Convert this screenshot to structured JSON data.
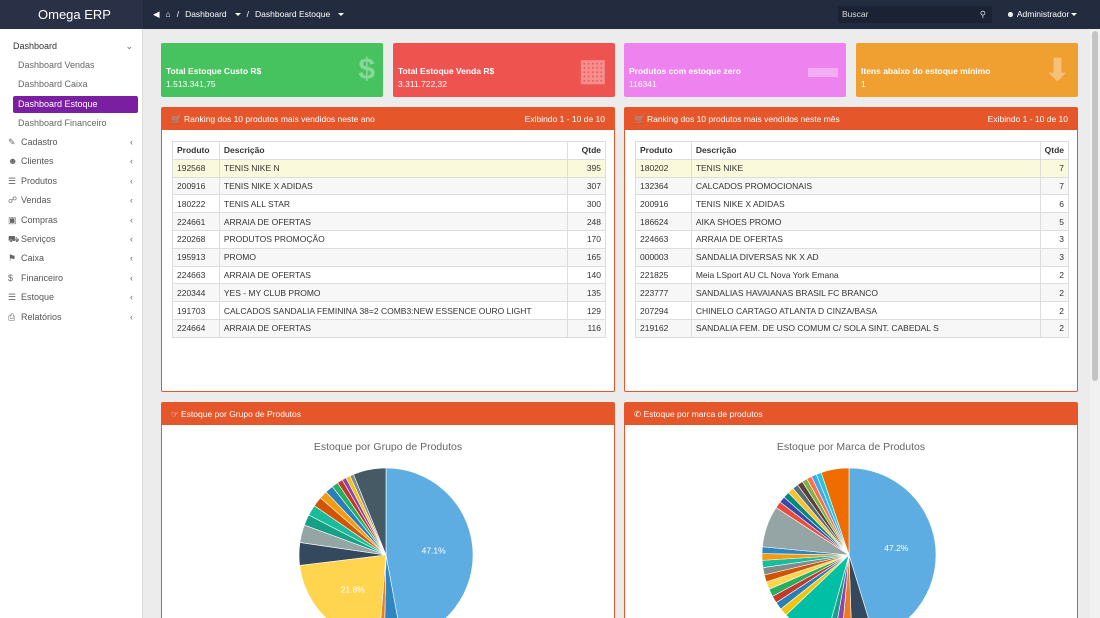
{
  "brand": "Omega ERP",
  "breadcrumb": {
    "items": [
      "Dashboard",
      "Dashboard Estoque"
    ]
  },
  "search": {
    "placeholder": "Buscar"
  },
  "user": {
    "name": "Administrador"
  },
  "sidebar": {
    "dashboard": "Dashboard",
    "subs": [
      "Dashboard Vendas",
      "Dashboard Caixa",
      "Dashboard Estoque",
      "Dashboard Financeiro"
    ],
    "menu": [
      "Cadastro",
      "Clientes",
      "Produtos",
      "Vendas",
      "Compras",
      "Serviços",
      "Caixa",
      "Financeiro",
      "Estoque",
      "Relatórios"
    ]
  },
  "stats": [
    {
      "title": "Total Estoque Custo R$",
      "value": "1.513.341,75",
      "color": "#46c35f",
      "icon": "dollar-icon"
    },
    {
      "title": "Total Estoque Venda R$",
      "value": "3.311.722,32",
      "color": "#ef5350",
      "icon": "building-icon"
    },
    {
      "title": "Produtos com estoque zero",
      "value": "116341",
      "color": "#ee82ee",
      "icon": "minus-icon"
    },
    {
      "title": "Itens abaixo do estoque mínimo",
      "value": "1",
      "color": "#f0a030",
      "icon": "download-icon"
    }
  ],
  "ranking_year": {
    "title": "Ranking dos 10 produtos mais vendidos neste ano",
    "showing": "Exibindo 1 - 10 de 10",
    "headers": [
      "Produto",
      "Descrição",
      "Qtde"
    ],
    "rows": [
      [
        "192568",
        "TENIS NIKE N",
        "395"
      ],
      [
        "200916",
        "TENIS NIKE X ADIDAS",
        "307"
      ],
      [
        "180222",
        "TENIS ALL STAR",
        "300"
      ],
      [
        "224661",
        "ARRAIA DE OFERTAS",
        "248"
      ],
      [
        "220268",
        "PRODUTOS PROMOÇÃO",
        "170"
      ],
      [
        "195913",
        "PROMO",
        "165"
      ],
      [
        "224663",
        "ARRAIA DE OFERTAS",
        "140"
      ],
      [
        "220344",
        "YES - MY CLUB PROMO",
        "135"
      ],
      [
        "191703",
        "CALCADOS SANDALIA FEMININA 38=2 COMB3:NEW ESSENCE OURO LIGHT",
        "129"
      ],
      [
        "224664",
        "ARRAIA DE OFERTAS",
        "116"
      ]
    ]
  },
  "ranking_month": {
    "title": "Ranking dos 10 produtos mais vendidos neste mês",
    "showing": "Exibindo 1 - 10 de 10",
    "headers": [
      "Produto",
      "Descrição",
      "Qtde"
    ],
    "rows": [
      [
        "180202",
        "TENIS NIKE",
        "7"
      ],
      [
        "132364",
        "CALCADOS PROMOCIONAIS",
        "7"
      ],
      [
        "200916",
        "TENIS NIKE X ADIDAS",
        "6"
      ],
      [
        "186624",
        "AIKA SHOES PROMO",
        "5"
      ],
      [
        "224663",
        "ARRAIA DE OFERTAS",
        "3"
      ],
      [
        "000003",
        "SANDALIA DIVERSAS NK X AD",
        "3"
      ],
      [
        "221825",
        "Meia LSport AU CL Nova York Emana",
        "2"
      ],
      [
        "223777",
        "SANDALIAS HAVAIANAS BRASIL FC BRANCO",
        "2"
      ],
      [
        "207294",
        "CHINELO CARTAGO ATLANTA D CINZA/BASA",
        "2"
      ],
      [
        "219162",
        "SANDALIA FEM. DE USO COMUM C/ SOLA SINT. CABEDAL S",
        "2"
      ]
    ]
  },
  "group_panel": {
    "header": "Estoque por Grupo de Produtos",
    "chart_title": "Estoque por Grupo de Produtos"
  },
  "brand_panel": {
    "header": "Estoque por marca de produtos",
    "chart_title": "Estoque por Marca de Produtos"
  },
  "chart_data": [
    {
      "type": "pie",
      "title": "Estoque por Grupo de Produtos",
      "values": [
        47.1,
        3.2,
        1.0,
        21.8,
        4.2,
        3.3,
        2.0,
        2.0,
        1.8,
        1.5,
        1.5,
        1.2,
        1.0,
        0.8,
        0.8,
        0.7,
        6.1
      ],
      "colors": [
        "#5dade2",
        "#2e86c1",
        "#e67e22",
        "#ffd54f",
        "#34495e",
        "#95a5a6",
        "#16a085",
        "#1abc9c",
        "#d35400",
        "#f39c12",
        "#2980b9",
        "#27ae60",
        "#c0392b",
        "#8e44ad",
        "#f1c40f",
        "#7f8c8d",
        "#455a64"
      ],
      "labels": {
        "0": "47.1%",
        "3": "21.8%"
      }
    },
    {
      "type": "pie",
      "title": "Estoque por Marca de Produtos",
      "values": [
        47.2,
        4.4,
        2.0,
        1.5,
        1.5,
        9.0,
        1.5,
        1.5,
        1.4,
        1.5,
        1.5,
        1.4,
        1.4,
        1.4,
        1.3,
        1.3,
        8.0,
        1.3,
        1.2,
        1.2,
        1.2,
        1.1,
        1.1,
        1.0,
        1.0,
        1.0,
        1.0,
        5.4
      ],
      "colors": [
        "#5dade2",
        "#34495e",
        "#e67e22",
        "#8e44ad",
        "#16a085",
        "#00bfa5",
        "#f1c40f",
        "#2980b9",
        "#c0392b",
        "#27ae60",
        "#ffd54f",
        "#d35400",
        "#7f8c8d",
        "#1abc9c",
        "#f39c12",
        "#2e86c1",
        "#95a5a6",
        "#e74c3c",
        "#3949ab",
        "#00897b",
        "#fbc02d",
        "#546e7a",
        "#5d4037",
        "#7cb342",
        "#ff7043",
        "#42a5f5",
        "#26c6da",
        "#ef6c00"
      ],
      "labels": {
        "0": "47.2%"
      }
    }
  ]
}
